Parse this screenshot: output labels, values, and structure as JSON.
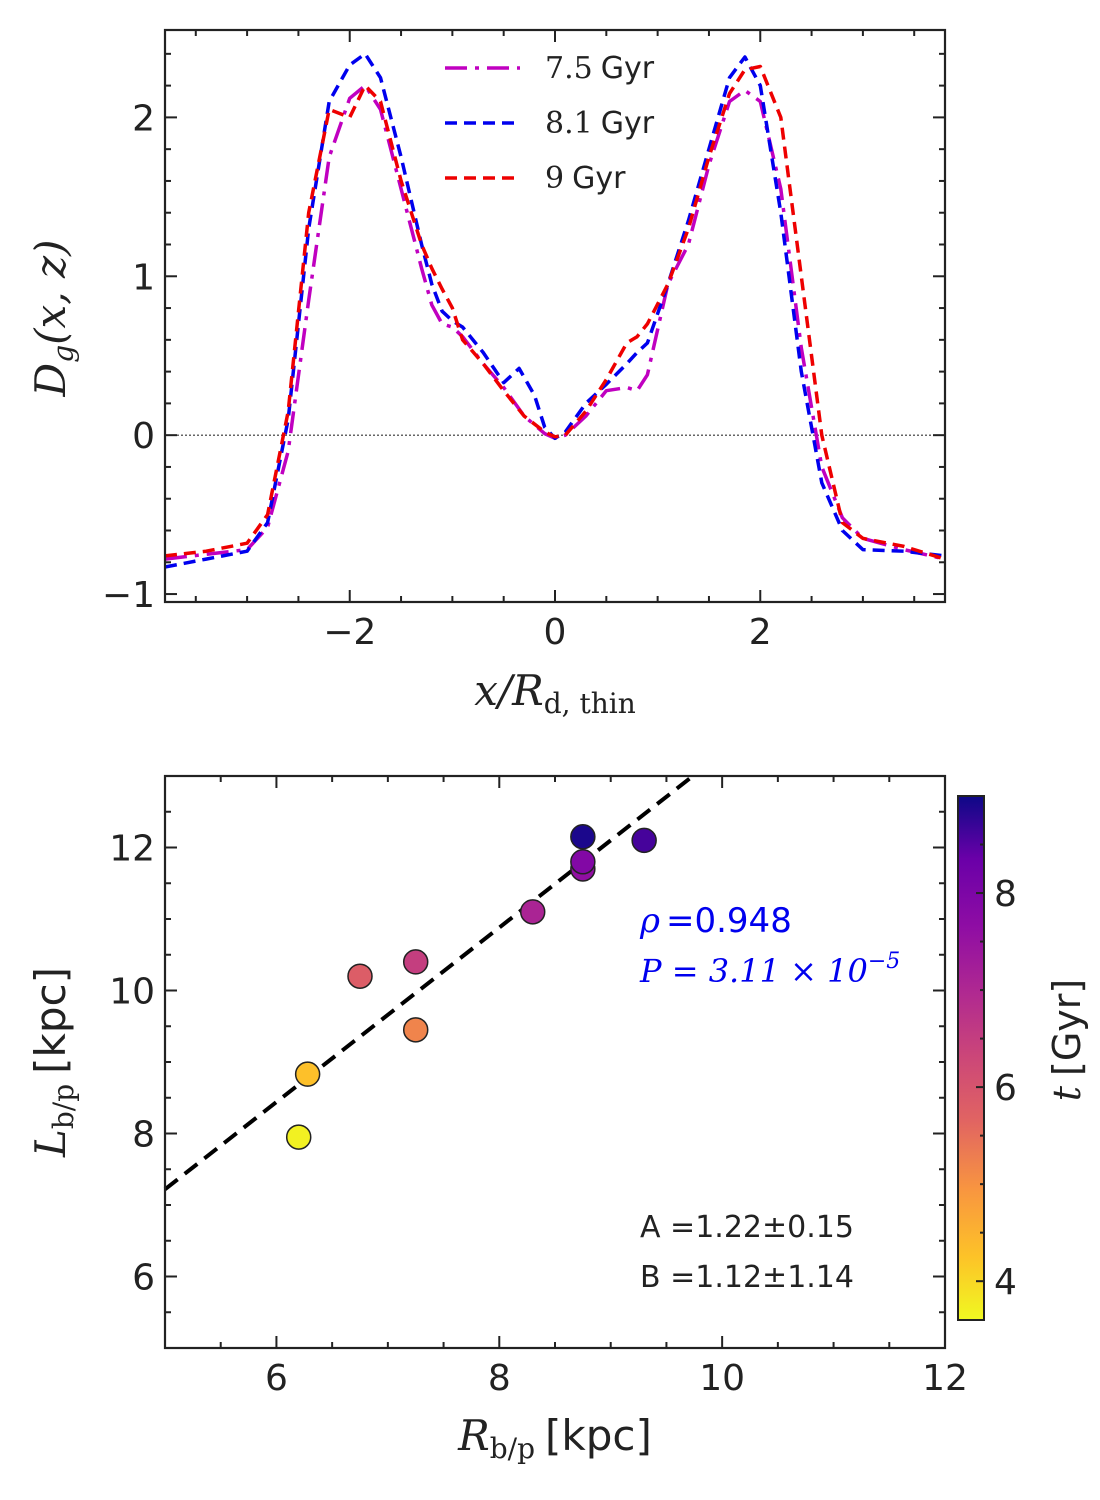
{
  "chart_data": [
    {
      "type": "line",
      "xlabel": "x/R_d,thin",
      "ylabel": "D_g(x,z)",
      "xlim": [
        -3.8,
        3.8
      ],
      "ylim": [
        -1.05,
        2.55
      ],
      "x_ticks": [
        "−2",
        "0",
        "2"
      ],
      "y_ticks": [
        "−1",
        "0",
        "1",
        "2"
      ],
      "reference_line": {
        "y": 0,
        "style": "dotted"
      },
      "legend": {
        "placement": "top-center"
      },
      "series": [
        {
          "name": "7.5 Gyr",
          "name_value": "7.5",
          "name_unit": "Gyr",
          "color": "#c000c0",
          "style": "dashdot",
          "x": [
            -3.8,
            -3.4,
            -3.0,
            -2.8,
            -2.6,
            -2.4,
            -2.2,
            -2.0,
            -1.85,
            -1.7,
            -1.5,
            -1.3,
            -1.2,
            -1.1,
            -1.0,
            -0.9,
            -0.7,
            -0.5,
            -0.3,
            -0.1,
            0.0,
            0.1,
            0.3,
            0.5,
            0.7,
            0.8,
            0.9,
            1.1,
            1.3,
            1.5,
            1.7,
            1.85,
            2.0,
            2.2,
            2.4,
            2.6,
            2.8,
            3.0,
            3.4,
            3.8
          ],
          "y": [
            -0.78,
            -0.75,
            -0.72,
            -0.58,
            -0.1,
            0.85,
            1.75,
            2.12,
            2.2,
            2.05,
            1.55,
            1.05,
            0.82,
            0.7,
            0.68,
            0.62,
            0.45,
            0.3,
            0.12,
            0.01,
            -0.02,
            0.0,
            0.12,
            0.28,
            0.3,
            0.28,
            0.38,
            0.95,
            1.2,
            1.7,
            2.1,
            2.17,
            2.1,
            1.55,
            0.55,
            -0.2,
            -0.52,
            -0.65,
            -0.72,
            -0.78
          ]
        },
        {
          "name": "8.1 Gyr",
          "name_value": "8.1",
          "name_unit": "Gyr",
          "color": "#0000ee",
          "style": "dashed",
          "x": [
            -3.8,
            -3.4,
            -3.0,
            -2.8,
            -2.6,
            -2.4,
            -2.2,
            -2.0,
            -1.85,
            -1.7,
            -1.5,
            -1.3,
            -1.2,
            -1.1,
            -1.0,
            -0.9,
            -0.7,
            -0.5,
            -0.35,
            -0.2,
            -0.1,
            0.0,
            0.1,
            0.3,
            0.5,
            0.7,
            0.8,
            0.9,
            1.1,
            1.3,
            1.5,
            1.7,
            1.85,
            2.0,
            2.2,
            2.4,
            2.6,
            2.8,
            3.0,
            3.4,
            3.8
          ],
          "y": [
            -0.83,
            -0.78,
            -0.73,
            -0.55,
            0.1,
            1.3,
            2.1,
            2.33,
            2.4,
            2.25,
            1.75,
            1.2,
            0.95,
            0.78,
            0.72,
            0.68,
            0.52,
            0.33,
            0.42,
            0.25,
            0.05,
            -0.02,
            0.02,
            0.2,
            0.32,
            0.45,
            0.52,
            0.58,
            0.95,
            1.35,
            1.8,
            2.25,
            2.38,
            2.2,
            1.4,
            0.4,
            -0.3,
            -0.6,
            -0.72,
            -0.73,
            -0.76
          ]
        },
        {
          "name": "9 Gyr",
          "name_value": "9",
          "name_unit": "Gyr",
          "color": "#ee0000",
          "style": "dashed",
          "x": [
            -3.8,
            -3.4,
            -3.0,
            -2.8,
            -2.6,
            -2.4,
            -2.2,
            -2.0,
            -1.85,
            -1.7,
            -1.5,
            -1.3,
            -1.2,
            -1.1,
            -1.0,
            -0.9,
            -0.7,
            -0.5,
            -0.3,
            -0.1,
            0.0,
            0.1,
            0.3,
            0.5,
            0.7,
            0.8,
            0.9,
            1.1,
            1.3,
            1.5,
            1.7,
            1.85,
            2.0,
            2.2,
            2.4,
            2.6,
            2.8,
            3.0,
            3.4,
            3.8
          ],
          "y": [
            -0.76,
            -0.73,
            -0.68,
            -0.5,
            0.15,
            1.4,
            2.05,
            2.0,
            2.2,
            2.1,
            1.6,
            1.2,
            1.05,
            0.92,
            0.8,
            0.6,
            0.45,
            0.28,
            0.12,
            0.02,
            -0.01,
            0.0,
            0.15,
            0.35,
            0.58,
            0.62,
            0.7,
            0.95,
            1.3,
            1.75,
            2.15,
            2.3,
            2.32,
            2.0,
            1.0,
            0.0,
            -0.55,
            -0.65,
            -0.7,
            -0.78
          ]
        }
      ]
    },
    {
      "type": "scatter",
      "xlabel_unit": "[kpc]",
      "ylabel_unit": "[kpc]",
      "xlim": [
        5,
        12
      ],
      "ylim": [
        5,
        13
      ],
      "x_ticks": [
        "6",
        "8",
        "10",
        "12"
      ],
      "y_ticks": [
        "6",
        "8",
        "10",
        "12"
      ],
      "points": [
        {
          "x": 6.2,
          "y": 7.95,
          "t": 3.7
        },
        {
          "x": 6.28,
          "y": 8.83,
          "t": 4.3
        },
        {
          "x": 7.25,
          "y": 9.45,
          "t": 5.2
        },
        {
          "x": 6.75,
          "y": 10.2,
          "t": 5.8
        },
        {
          "x": 7.25,
          "y": 10.4,
          "t": 6.5
        },
        {
          "x": 8.3,
          "y": 11.1,
          "t": 7.1
        },
        {
          "x": 8.75,
          "y": 11.7,
          "t": 7.6
        },
        {
          "x": 8.75,
          "y": 11.8,
          "t": 7.9
        },
        {
          "x": 8.75,
          "y": 12.15,
          "t": 8.9
        },
        {
          "x": 9.3,
          "y": 12.1,
          "t": 8.6
        }
      ],
      "fit_line": {
        "slope": 1.22,
        "intercept": 1.12,
        "style": "dashed",
        "color": "#000000"
      },
      "stats": {
        "rho_label": "=0.948",
        "p_label": "P = 3.11 × 10",
        "p_exponent": "−5",
        "a_label": "A =1.22±0.15",
        "b_label": "B =1.12±1.14"
      },
      "colorbar": {
        "label": "[Gyr]",
        "range": [
          3.6,
          9.0
        ],
        "ticks": [
          "4",
          "6",
          "8"
        ],
        "colormap": "plasma_r"
      }
    }
  ]
}
